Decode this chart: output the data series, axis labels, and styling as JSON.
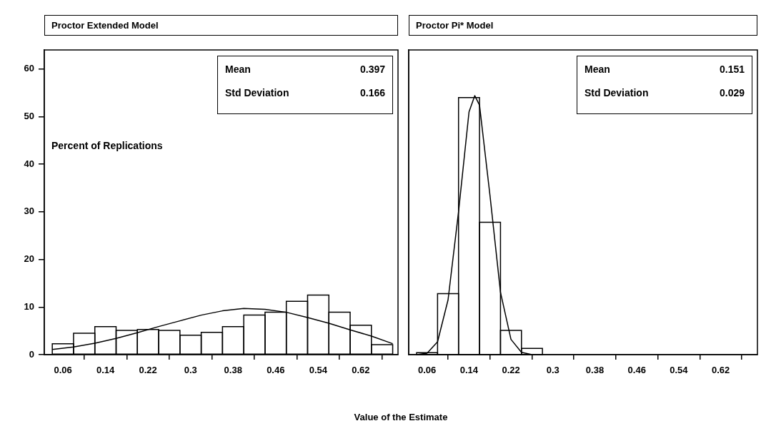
{
  "chart_data": [
    {
      "type": "histogram",
      "title": "Proctor Extended Model",
      "xlabel": "Value of the Estimate",
      "ylabel": "Percent of Replications",
      "series": [
        {
          "color": "#000000",
          "bins": [
            0.04,
            0.08,
            0.12,
            0.16,
            0.2,
            0.24,
            0.28,
            0.32,
            0.36,
            0.4,
            0.44,
            0.48,
            0.52,
            0.56,
            0.6,
            0.64,
            0.68
          ],
          "values": [
            2.3,
            4.5,
            5.9,
            5.1,
            5.3,
            5.1,
            4.1,
            4.7,
            5.9,
            8.3,
            8.9,
            11.2,
            12.5,
            8.9,
            6.2,
            2.1
          ]
        },
        {
          "type": "line",
          "color": "#000000",
          "x": [
            0.04,
            0.08,
            0.12,
            0.16,
            0.2,
            0.24,
            0.28,
            0.32,
            0.36,
            0.4,
            0.44,
            0.48,
            0.52,
            0.56,
            0.6,
            0.64,
            0.68
          ],
          "values": [
            1.1,
            1.6,
            2.4,
            3.4,
            4.6,
            5.9,
            7.1,
            8.3,
            9.2,
            9.7,
            9.5,
            8.9,
            7.8,
            6.6,
            5.2,
            3.9,
            2.3
          ]
        }
      ],
      "xlim": [
        0.025,
        0.69
      ],
      "xticks": [
        0.06,
        0.14,
        0.22,
        0.3,
        0.38,
        0.46,
        0.54,
        0.62
      ],
      "ylim": [
        0,
        64
      ],
      "yticks": [
        0,
        10,
        20,
        30,
        40,
        50,
        60
      ],
      "annotations": [
        "Mean",
        "0.397",
        "Std Deviation",
        "0.166"
      ]
    },
    {
      "type": "histogram",
      "title": "Proctor Pi* Model",
      "series": [
        {
          "color": "#000000",
          "bins": [
            0.04,
            0.08,
            0.12,
            0.16,
            0.2,
            0.24,
            0.28
          ],
          "values": [
            0.4,
            12.8,
            54,
            27.8,
            5.1,
            1.3
          ]
        },
        {
          "type": "line",
          "color": "#000000",
          "x": [
            0.04,
            0.06,
            0.08,
            0.1,
            0.12,
            0.14,
            0.151,
            0.16,
            0.18,
            0.2,
            0.22,
            0.24,
            0.26
          ],
          "values": [
            0,
            0.3,
            2.7,
            11.5,
            30,
            51,
            54.4,
            52.4,
            33.4,
            13.1,
            3.2,
            0.5,
            0
          ]
        }
      ],
      "xlim": [
        0.025,
        0.69
      ],
      "xticks": [
        0.06,
        0.14,
        0.22,
        0.3,
        0.38,
        0.46,
        0.54,
        0.62
      ],
      "ylim": [
        0,
        64
      ],
      "tick_labels": "x",
      "annotations": [
        "Mean",
        "0.151",
        "Std Deviation",
        "0.029"
      ]
    }
  ]
}
